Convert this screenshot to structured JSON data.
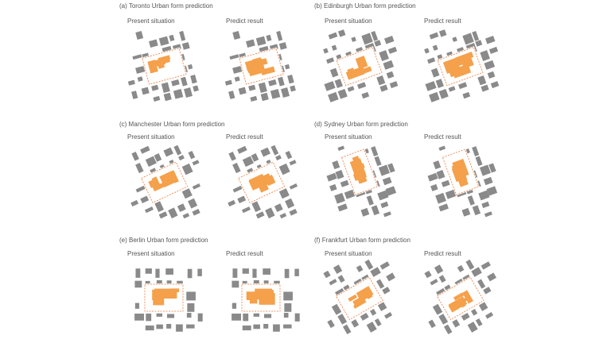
{
  "colors": {
    "building": "#8a8a8a",
    "site": "#f5a04a",
    "boundary": "#ee7a3a",
    "background": "#ffffff"
  },
  "present_label": "Present situation",
  "predict_label": "Predict result",
  "figures": [
    {
      "title": "(a) Toronto Urban form prediction"
    },
    {
      "title": "(b) Edinburgh Urban form prediction"
    },
    {
      "title": "(c) Manchester Urban form prediction"
    },
    {
      "title": "(d) Sydney Urban form prediction"
    },
    {
      "title": "(e) Berlin Urban form prediction"
    },
    {
      "title": "(f) Frankfurt Urban form prediction"
    }
  ]
}
